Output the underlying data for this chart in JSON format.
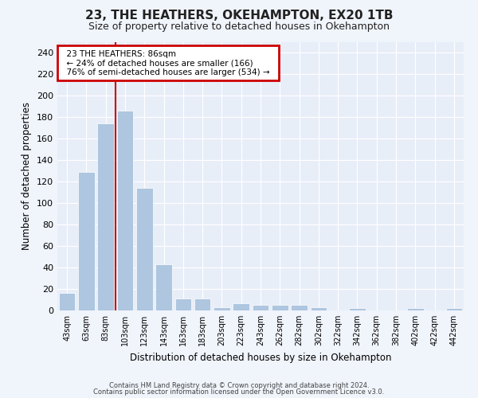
{
  "title": "23, THE HEATHERS, OKEHAMPTON, EX20 1TB",
  "subtitle": "Size of property relative to detached houses in Okehampton",
  "xlabel": "Distribution of detached houses by size in Okehampton",
  "ylabel": "Number of detached properties",
  "footer_line1": "Contains HM Land Registry data © Crown copyright and database right 2024.",
  "footer_line2": "Contains public sector information licensed under the Open Government Licence v3.0.",
  "annotation_title": "23 THE HEATHERS: 86sqm",
  "annotation_line2": "← 24% of detached houses are smaller (166)",
  "annotation_line3": "76% of semi-detached houses are larger (534) →",
  "marker_bin_index": 2,
  "bar_color": "#aec6df",
  "marker_color": "#cc0000",
  "annotation_box_edgecolor": "#cc0000",
  "categories": [
    "43sqm",
    "63sqm",
    "83sqm",
    "103sqm",
    "123sqm",
    "143sqm",
    "163sqm",
    "183sqm",
    "203sqm",
    "223sqm",
    "243sqm",
    "262sqm",
    "282sqm",
    "302sqm",
    "322sqm",
    "342sqm",
    "362sqm",
    "382sqm",
    "402sqm",
    "422sqm",
    "442sqm"
  ],
  "values": [
    16,
    129,
    174,
    186,
    114,
    43,
    11,
    11,
    3,
    7,
    5,
    5,
    5,
    3,
    0,
    2,
    0,
    0,
    2,
    0,
    2
  ],
  "ylim": [
    0,
    250
  ],
  "yticks": [
    0,
    20,
    40,
    60,
    80,
    100,
    120,
    140,
    160,
    180,
    200,
    220,
    240
  ],
  "figsize": [
    6.0,
    5.0
  ],
  "dpi": 100,
  "bg_color": "#f0f4fb",
  "plot_bg_color": "#e8eef8"
}
